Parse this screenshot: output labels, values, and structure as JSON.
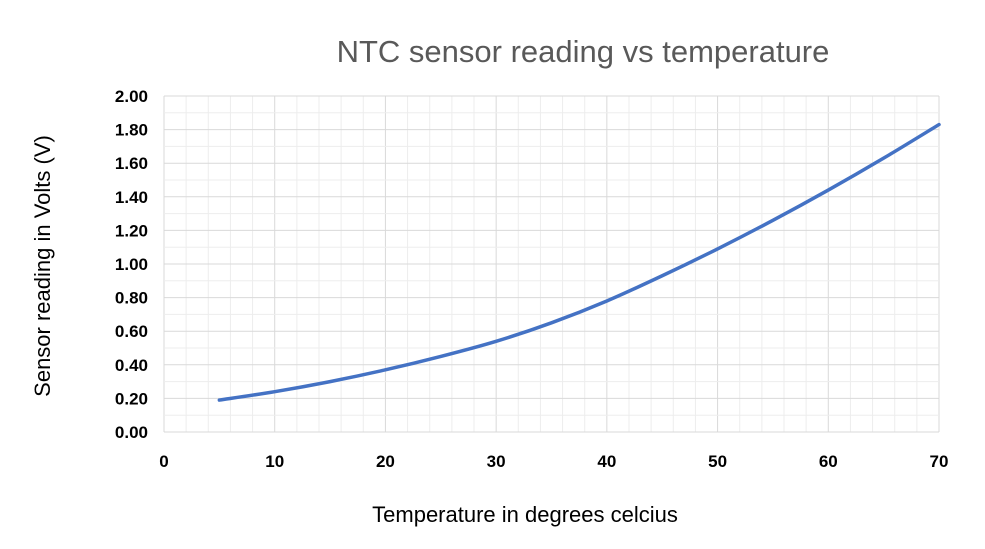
{
  "chart_data": {
    "type": "line",
    "title": "NTC sensor reading vs temperature",
    "xlabel": "Temperature in degrees celcius",
    "ylabel": "Sensor reading in Volts (V)",
    "xlim": [
      0,
      70
    ],
    "ylim": [
      0,
      2
    ],
    "x_ticks": [
      "0",
      "10",
      "20",
      "30",
      "40",
      "50",
      "60",
      "70"
    ],
    "y_ticks": [
      "0.00",
      "0.20",
      "0.40",
      "0.60",
      "0.80",
      "1.00",
      "1.20",
      "1.40",
      "1.60",
      "1.80",
      "2.00"
    ],
    "grid": true,
    "legend": "none",
    "series": [
      {
        "color": "#4472c4",
        "x": [
          5,
          10,
          15,
          20,
          25,
          30,
          35,
          40,
          45,
          50,
          55,
          60,
          65,
          70
        ],
        "y": [
          0.19,
          0.24,
          0.3,
          0.37,
          0.45,
          0.54,
          0.65,
          0.78,
          0.93,
          1.09,
          1.26,
          1.44,
          1.63,
          1.83
        ]
      }
    ]
  }
}
